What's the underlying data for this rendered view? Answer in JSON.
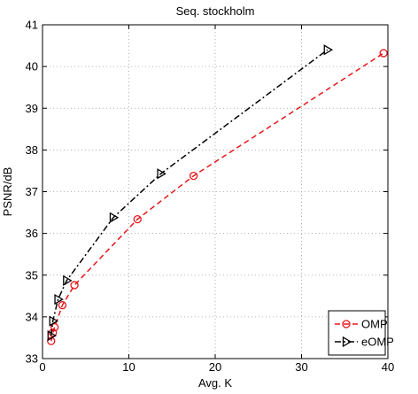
{
  "chart_data": {
    "type": "line",
    "title": "Seq. stockholm",
    "xlabel": "Avg. K",
    "ylabel": "PSNR/dB",
    "xlim": [
      0,
      40
    ],
    "ylim": [
      33,
      41
    ],
    "xticks": [
      0,
      10,
      20,
      30,
      40
    ],
    "yticks": [
      33,
      34,
      35,
      36,
      37,
      38,
      39,
      40,
      41
    ],
    "grid": true,
    "legend_position": "bottom-right",
    "series": [
      {
        "name": "OMP",
        "color": "#e8151b",
        "line_style": "dashed",
        "marker": "circle",
        "x": [
          1.0,
          1.2,
          1.4,
          2.3,
          3.7,
          11.0,
          17.5,
          39.5
        ],
        "y": [
          33.42,
          33.62,
          33.75,
          34.28,
          34.76,
          36.34,
          37.38,
          40.32
        ]
      },
      {
        "name": "eOMP",
        "color": "#000000",
        "line_style": "dash-dot",
        "marker": "triangle-right",
        "x": [
          1.0,
          1.2,
          1.8,
          2.8,
          8.2,
          13.7,
          33.0
        ],
        "y": [
          33.55,
          33.9,
          34.42,
          34.87,
          36.38,
          37.43,
          40.4
        ]
      }
    ]
  }
}
